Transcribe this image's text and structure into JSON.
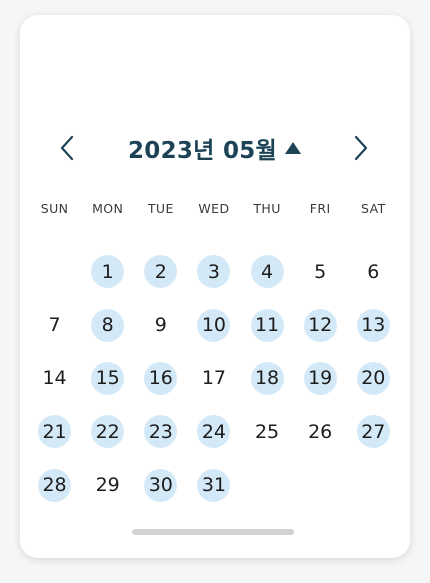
{
  "calendar": {
    "title": "2023년 05월",
    "weekdays": [
      "SUN",
      "MON",
      "TUE",
      "WED",
      "THU",
      "FRI",
      "SAT"
    ],
    "leading_blank_days": 1,
    "days": [
      {
        "n": "1",
        "marked": true
      },
      {
        "n": "2",
        "marked": true
      },
      {
        "n": "3",
        "marked": true
      },
      {
        "n": "4",
        "marked": true
      },
      {
        "n": "5",
        "marked": false
      },
      {
        "n": "6",
        "marked": false
      },
      {
        "n": "7",
        "marked": false
      },
      {
        "n": "8",
        "marked": true
      },
      {
        "n": "9",
        "marked": false
      },
      {
        "n": "10",
        "marked": true
      },
      {
        "n": "11",
        "marked": true
      },
      {
        "n": "12",
        "marked": true
      },
      {
        "n": "13",
        "marked": true
      },
      {
        "n": "14",
        "marked": false
      },
      {
        "n": "15",
        "marked": true
      },
      {
        "n": "16",
        "marked": true
      },
      {
        "n": "17",
        "marked": false
      },
      {
        "n": "18",
        "marked": true
      },
      {
        "n": "19",
        "marked": true
      },
      {
        "n": "20",
        "marked": true
      },
      {
        "n": "21",
        "marked": true
      },
      {
        "n": "22",
        "marked": true
      },
      {
        "n": "23",
        "marked": true
      },
      {
        "n": "24",
        "marked": true
      },
      {
        "n": "25",
        "marked": false
      },
      {
        "n": "26",
        "marked": false
      },
      {
        "n": "27",
        "marked": true
      },
      {
        "n": "28",
        "marked": true
      },
      {
        "n": "29",
        "marked": false
      },
      {
        "n": "30",
        "marked": true
      },
      {
        "n": "31",
        "marked": true
      }
    ]
  },
  "icons": {
    "prev": "chevron-left-icon",
    "next": "chevron-right-icon",
    "toggle": "triangle-up-icon"
  },
  "colors": {
    "title": "#1c4456",
    "marked_day_bg": "#d4e9f7",
    "text": "#1d1d1d"
  }
}
